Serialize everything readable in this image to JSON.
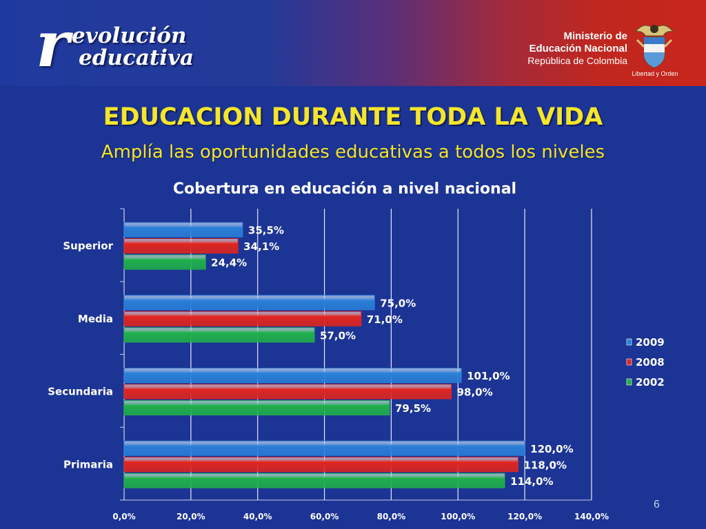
{
  "header": {
    "logo": {
      "letter": "r",
      "line1": "evolución",
      "line2": "educativa"
    },
    "ministry": {
      "line1": "Ministerio de",
      "line2": "Educación Nacional",
      "line3": "República de Colombia",
      "motto": "Libertad y Orden"
    }
  },
  "slide": {
    "title": "EDUCACION DURANTE TODA LA VIDA",
    "subtitle": "Amplía las oportunidades educativas a todos los niveles",
    "page_number": "6"
  },
  "colors": {
    "background": "#1c3494",
    "title": "#f5e62a",
    "series_2009": "#2a7fd8",
    "series_2008": "#e0251e",
    "series_2002": "#1fb04a"
  },
  "chart_data": {
    "type": "bar",
    "orientation": "horizontal",
    "title": "Cobertura en educación a nivel nacional",
    "categories": [
      "Superior",
      "Media",
      "Secundaria",
      "Primaria"
    ],
    "series": [
      {
        "name": "2009",
        "values": [
          35.5,
          75.0,
          101.0,
          120.0
        ],
        "labels": [
          "35,5%",
          "75,0%",
          "101,0%",
          "120,0%"
        ],
        "color": "#2a7fd8"
      },
      {
        "name": "2008",
        "values": [
          34.1,
          71.0,
          98.0,
          118.0
        ],
        "labels": [
          "34,1%",
          "71,0%",
          "98,0%",
          "118,0%"
        ],
        "color": "#e0251e"
      },
      {
        "name": "2002",
        "values": [
          24.4,
          57.0,
          79.5,
          114.0
        ],
        "labels": [
          "24,4%",
          "57,0%",
          "79,5%",
          "114,0%"
        ],
        "color": "#1fb04a"
      }
    ],
    "xlim": [
      0,
      140
    ],
    "xticks": [
      0,
      20,
      40,
      60,
      80,
      100,
      120,
      140
    ],
    "xtick_labels": [
      "0,0%",
      "20,0%",
      "40,0%",
      "60,0%",
      "80,0%",
      "100,0%",
      "120,0%",
      "140,0%"
    ],
    "grid": true,
    "legend_position": "right"
  }
}
